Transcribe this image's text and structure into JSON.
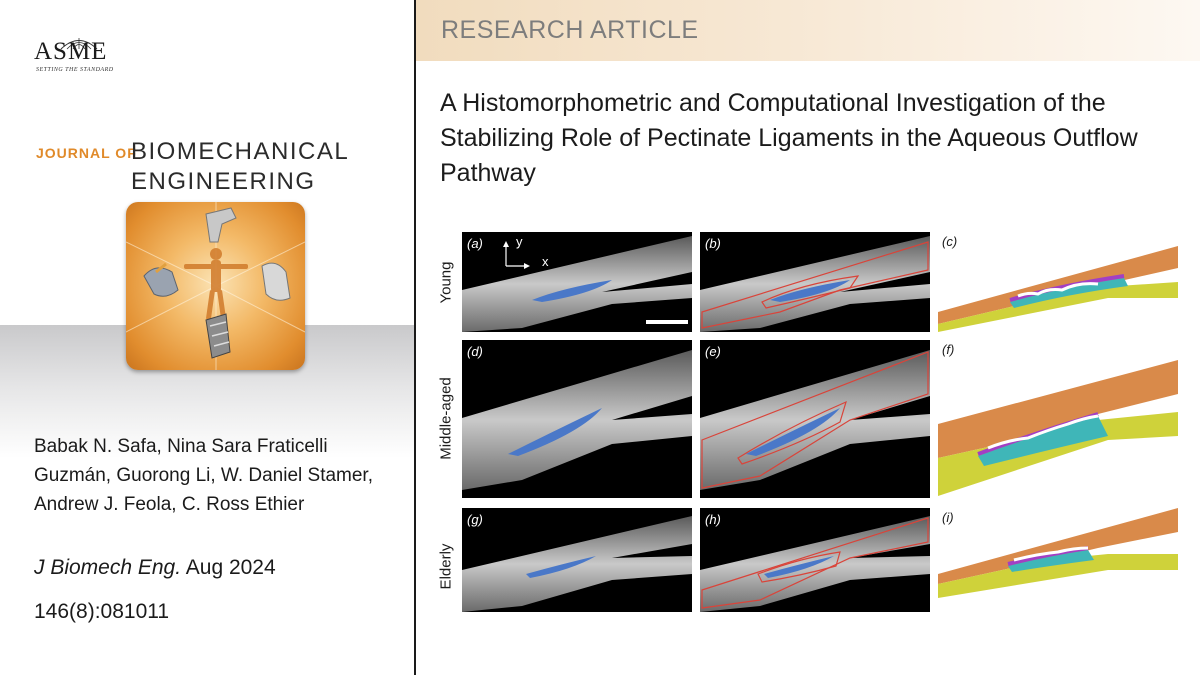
{
  "publisher": {
    "logo_text": "ASME",
    "tagline": "SETTING THE STANDARD"
  },
  "journal": {
    "prefix": "JOURNAL OF",
    "name_line1": "BIOMECHANICAL",
    "name_line2": "ENGINEERING"
  },
  "article": {
    "type_label": "RESEARCH ARTICLE",
    "title": "A Histomorphometric and Computational Investigation of the Stabilizing Role of Pectinate Ligaments in the Aqueous Outflow Pathway",
    "authors": "Babak N. Safa, Nina Sara Fraticelli Guzmán, Guorong Li, W. Daniel Stamer, Andrew J. Feola, C. Ross Ethier",
    "journal_abbrev": "J Biomech Eng.",
    "date": " Aug 2024",
    "volume_issue": "146(8):081011"
  },
  "figure": {
    "rows": [
      "Young",
      "Middle-aged",
      "Elderly"
    ],
    "panel_letters": [
      "(a)",
      "(b)",
      "(c)",
      "(d)",
      "(e)",
      "(f)",
      "(g)",
      "(h)",
      "(i)"
    ],
    "axis_y": "y",
    "axis_x": "x"
  },
  "colors": {
    "accent_orange": "#e08a2a",
    "header_band": "#f1dcbe",
    "segment_blue": "#4a78c8",
    "outline_red": "#d9443a",
    "mesh_orange": "#d98a4a",
    "mesh_yellow": "#cfd23a",
    "mesh_purple": "#a23fc4",
    "mesh_cyan": "#3fb6b8"
  }
}
